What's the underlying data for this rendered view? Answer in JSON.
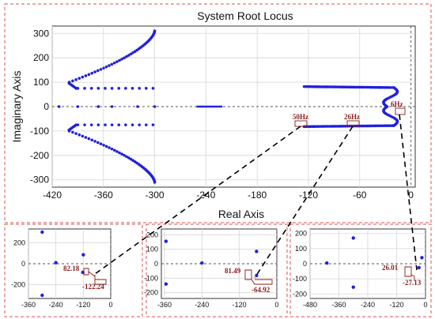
{
  "colors": {
    "points": "#1f1fe0",
    "frame": "#e0504a",
    "annotation": "#8b1a1a"
  },
  "chart_data": [
    {
      "type": "scatter",
      "title": "System Root Locus",
      "xlabel": "Real Axis",
      "ylabel": "Imaginary Axis",
      "xlim": [
        -420,
        5
      ],
      "ylim": [
        -330,
        330
      ],
      "x_ticks": [
        -420,
        -360,
        -300,
        -240,
        -180,
        -120,
        -60,
        0
      ],
      "y_ticks": [
        -300,
        -200,
        -100,
        0,
        100,
        200,
        300
      ],
      "grid": true,
      "annotations": [
        "50Hz",
        "26Hz",
        "6Hz"
      ]
    },
    {
      "type": "scatter",
      "xlim": [
        -360,
        0
      ],
      "ylim": [
        -330,
        330
      ],
      "x_ticks": [
        -360,
        -240,
        -120,
        0
      ],
      "y_ticks": [
        -200,
        0,
        200
      ],
      "points": [
        [
          -300,
          300
        ],
        [
          -300,
          -300
        ],
        [
          -240,
          10
        ],
        [
          -120,
          85
        ],
        [
          -122.24,
          -82.18
        ]
      ],
      "annotations": [
        "82.18",
        "-122.24"
      ]
    },
    {
      "type": "scatter",
      "xlim": [
        -370,
        0
      ],
      "ylim": [
        -240,
        240
      ],
      "x_ticks": [
        -360,
        -240,
        -120,
        0
      ],
      "y_ticks": [
        -200,
        -100,
        0,
        100,
        200
      ],
      "points": [
        [
          -355,
          155
        ],
        [
          -355,
          -140
        ],
        [
          -240,
          5
        ],
        [
          -65,
          85
        ],
        [
          -64.92,
          -81.49
        ]
      ],
      "annotations": [
        "81.49",
        "-64.92"
      ]
    },
    {
      "type": "scatter",
      "xlim": [
        -480,
        0
      ],
      "ylim": [
        -230,
        230
      ],
      "x_ticks": [
        -480,
        -360,
        -240,
        -120,
        0
      ],
      "y_ticks": [
        -200,
        -100,
        0,
        100,
        200
      ],
      "points": [
        [
          -300,
          170
        ],
        [
          -300,
          -155
        ],
        [
          -410,
          5
        ],
        [
          -15,
          40
        ],
        [
          -27.13,
          -26.01
        ]
      ],
      "annotations": [
        "26.01",
        "-27.13"
      ]
    }
  ]
}
